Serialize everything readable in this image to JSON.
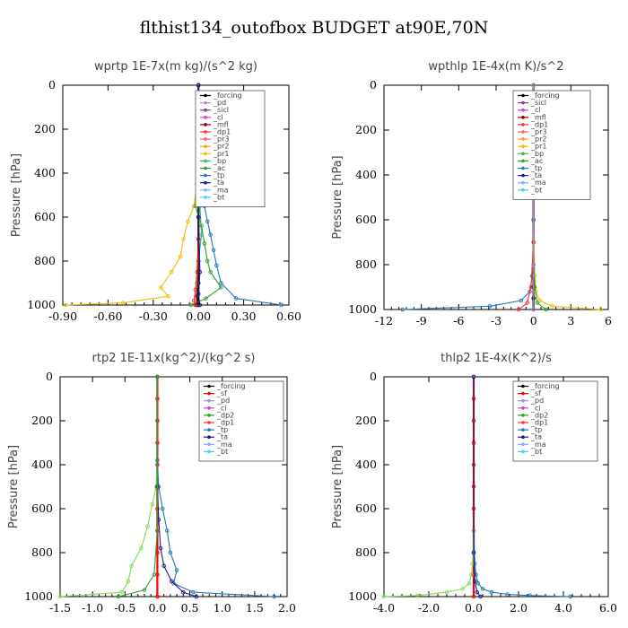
{
  "title": "flthist134_outofbox  BUDGET at90E,70N",
  "chart_data": [
    {
      "type": "line",
      "title": "wprtp  1E-7x(m kg)/(s^2 kg)",
      "ylabel": "Pressure [hPa]",
      "xlim": [
        -0.9,
        0.6
      ],
      "ylim": [
        1000,
        0
      ],
      "xticks": [
        "-0.90",
        "-0.60",
        "-0.30",
        "0.00",
        "0.30",
        "0.60"
      ],
      "yticks": [
        "0",
        "200",
        "400",
        "600",
        "800",
        "1000"
      ],
      "legend": [
        "_forcing",
        "_pd",
        "_sicl",
        "_cl",
        "_mfl",
        "_dp1",
        "_pr3",
        "_pr2",
        "_pr1",
        "_bp",
        "_ac",
        "_tp",
        "_ta",
        "_ma",
        "_bt"
      ],
      "series": [
        {
          "name": "_forcing",
          "color": "#000000",
          "x": [
            0,
            0,
            0,
            0,
            0,
            0,
            0,
            0,
            0,
            0,
            0
          ],
          "y": [
            0,
            100,
            200,
            300,
            400,
            500,
            600,
            700,
            800,
            900,
            1000
          ]
        },
        {
          "name": "_pr1",
          "color": "#f0c000",
          "x": [
            0,
            0,
            -0.01,
            -0.03,
            -0.07,
            -0.1,
            -0.12,
            -0.18,
            -0.25,
            -0.2,
            -0.5,
            -0.88
          ],
          "y": [
            0,
            200,
            450,
            550,
            620,
            700,
            780,
            850,
            920,
            960,
            990,
            1000
          ]
        },
        {
          "name": "_ac",
          "color": "#2ca02c",
          "x": [
            0,
            0,
            -0.01,
            -0.02,
            0.02,
            0.04,
            0.06,
            0.08,
            0.15,
            0.05,
            -0.05
          ],
          "y": [
            0,
            300,
            450,
            550,
            640,
            720,
            800,
            850,
            920,
            970,
            1000
          ]
        },
        {
          "name": "_tp",
          "color": "#1f77b4",
          "x": [
            0,
            0,
            0.01,
            0.04,
            0.06,
            0.08,
            0.1,
            0.12,
            0.15,
            0.25,
            0.55
          ],
          "y": [
            0,
            300,
            450,
            550,
            620,
            680,
            750,
            820,
            900,
            970,
            1000
          ]
        },
        {
          "name": "_bp",
          "color": "#3cb371",
          "x": [
            0,
            0,
            0.01,
            0.02,
            0.0,
            -0.01,
            -0.02
          ],
          "y": [
            0,
            400,
            550,
            680,
            800,
            900,
            1000
          ]
        },
        {
          "name": "_dp1",
          "color": "#ff3030",
          "x": [
            0,
            0,
            0,
            -0.01,
            -0.02,
            -0.03,
            -0.02
          ],
          "y": [
            0,
            500,
            700,
            850,
            930,
            980,
            1000
          ]
        },
        {
          "name": "_mfl",
          "color": "#8b0000",
          "x": [
            0,
            0,
            0,
            -0.01,
            -0.01
          ],
          "y": [
            0,
            600,
            850,
            960,
            1000
          ]
        },
        {
          "name": "_ta",
          "color": "#1a1a8c",
          "x": [
            0,
            0,
            0.01,
            0.0,
            0.01
          ],
          "y": [
            0,
            600,
            850,
            950,
            1000
          ]
        }
      ]
    },
    {
      "type": "line",
      "title": "wpthlp  1E-4x(m K)/s^2",
      "ylabel": "Pressure [hPa]",
      "xlim": [
        -12,
        6
      ],
      "ylim": [
        1000,
        0
      ],
      "xticks": [
        "-12",
        "-9",
        "-6",
        "-3",
        "0",
        "3",
        "6"
      ],
      "yticks": [
        "0",
        "200",
        "400",
        "600",
        "800",
        "1000"
      ],
      "legend": [
        "_forcing",
        "_sicl",
        "_cl",
        "_mfl",
        "_dp1",
        "_pr3",
        "_pr2",
        "_pr1",
        "_bp",
        "_ac",
        "_tp",
        "_ta",
        "_ma",
        "_bt"
      ],
      "series": [
        {
          "name": "_forcing",
          "color": "#000000",
          "x": [
            0,
            0,
            0,
            0,
            0,
            0,
            0,
            0
          ],
          "y": [
            0,
            200,
            400,
            600,
            800,
            900,
            950,
            1000
          ]
        },
        {
          "name": "_pr1",
          "color": "#f0c000",
          "x": [
            0,
            0,
            0.1,
            0.2,
            0.5,
            1.5,
            5.4
          ],
          "y": [
            0,
            600,
            850,
            920,
            960,
            985,
            1000
          ]
        },
        {
          "name": "_tp",
          "color": "#1f77b4",
          "x": [
            0,
            0,
            -0.1,
            -0.3,
            -1.0,
            -3.5,
            -10.5
          ],
          "y": [
            0,
            600,
            850,
            920,
            960,
            985,
            1000
          ]
        },
        {
          "name": "_ac",
          "color": "#2ca02c",
          "x": [
            0,
            0,
            0.1,
            0.3,
            1.0
          ],
          "y": [
            0,
            700,
            900,
            970,
            1000
          ]
        },
        {
          "name": "_dp1",
          "color": "#ff3030",
          "x": [
            0,
            0,
            -0.2,
            -0.5,
            -1.2
          ],
          "y": [
            0,
            700,
            900,
            970,
            1000
          ]
        },
        {
          "name": "_pd",
          "color": "#b090d0",
          "x": [
            0,
            0,
            0,
            0
          ],
          "y": [
            0,
            400,
            800,
            1000
          ]
        }
      ]
    },
    {
      "type": "line",
      "title": "rtp2  1E-11x(kg^2)/(kg^2 s)",
      "ylabel": "Pressure [hPa]",
      "xlim": [
        -1.5,
        2.0
      ],
      "ylim": [
        1000,
        0
      ],
      "xticks": [
        "-1.5",
        "-1.0",
        "-0.5",
        "0.0",
        "0.5",
        "1.0",
        "1.5",
        "2.0"
      ],
      "yticks": [
        "0",
        "200",
        "400",
        "600",
        "800",
        "1000"
      ],
      "legend": [
        "_forcing",
        "_sf",
        "_pd",
        "_cl",
        "_dp2",
        "_dp1",
        "_tp",
        "_ta",
        "_ma",
        "_bt"
      ],
      "series": [
        {
          "name": "_forcing",
          "color": "#ff0000",
          "x": [
            0,
            0,
            0,
            0,
            0,
            0,
            0,
            0,
            0,
            0,
            0
          ],
          "y": [
            0,
            100,
            200,
            300,
            400,
            500,
            600,
            700,
            800,
            900,
            1000
          ]
        },
        {
          "name": "_dp1",
          "color": "#7fdc50",
          "x": [
            0,
            0,
            -0.02,
            -0.08,
            -0.15,
            -0.25,
            -0.4,
            -0.45,
            -0.55,
            -1.5
          ],
          "y": [
            0,
            380,
            500,
            580,
            680,
            780,
            860,
            930,
            980,
            1000
          ]
        },
        {
          "name": "_tp",
          "color": "#1f77b4",
          "x": [
            0,
            0,
            0.02,
            0.08,
            0.15,
            0.2,
            0.3,
            0.25,
            0.55,
            1.8
          ],
          "y": [
            0,
            380,
            500,
            600,
            700,
            800,
            880,
            940,
            980,
            1000
          ]
        },
        {
          "name": "_ta",
          "color": "#1a1a8c",
          "x": [
            0,
            0,
            0.02,
            0.05,
            0.1,
            0.22,
            0.4,
            0.6
          ],
          "y": [
            0,
            500,
            650,
            780,
            860,
            930,
            980,
            1000
          ]
        },
        {
          "name": "_dp2",
          "color": "#2ca02c",
          "x": [
            0,
            0,
            -0.05,
            -0.2,
            -0.6
          ],
          "y": [
            0,
            700,
            900,
            970,
            1000
          ]
        }
      ]
    },
    {
      "type": "line",
      "title": "thlp2  1E-4x(K^2)/s",
      "ylabel": "Pressure [hPa]",
      "xlim": [
        -4.0,
        6.0
      ],
      "ylim": [
        1000,
        0
      ],
      "xticks": [
        "-4.0",
        "-2.0",
        "0.0",
        "2.0",
        "4.0",
        "6.0"
      ],
      "yticks": [
        "0",
        "200",
        "400",
        "600",
        "800",
        "1000"
      ],
      "legend": [
        "_forcing",
        "_sf",
        "_pd",
        "_cl",
        "_dp2",
        "_dp1",
        "_tp",
        "_ta",
        "_ma",
        "_bt"
      ],
      "series": [
        {
          "name": "_forcing",
          "color": "#ff0000",
          "x": [
            0,
            0,
            0,
            0,
            0,
            0,
            0,
            0,
            0,
            0,
            0
          ],
          "y": [
            0,
            100,
            200,
            300,
            400,
            500,
            600,
            700,
            800,
            900,
            1000
          ]
        },
        {
          "name": "_tp",
          "color": "#1f77b4",
          "x": [
            0,
            0,
            0.05,
            0.1,
            0.2,
            0.4,
            0.8,
            1.5,
            2.5,
            4.3
          ],
          "y": [
            0,
            700,
            850,
            900,
            940,
            965,
            980,
            990,
            995,
            1000
          ]
        },
        {
          "name": "_dp1",
          "color": "#7fdc50",
          "x": [
            0,
            0,
            -0.05,
            -0.1,
            -0.2,
            -0.5,
            -1.2,
            -2.5,
            -4.0
          ],
          "y": [
            0,
            700,
            850,
            900,
            940,
            965,
            980,
            995,
            1000
          ]
        },
        {
          "name": "_ta",
          "color": "#1a1a8c",
          "x": [
            0,
            0,
            0.05,
            0.15,
            0.3
          ],
          "y": [
            0,
            800,
            930,
            980,
            1000
          ]
        }
      ]
    }
  ]
}
